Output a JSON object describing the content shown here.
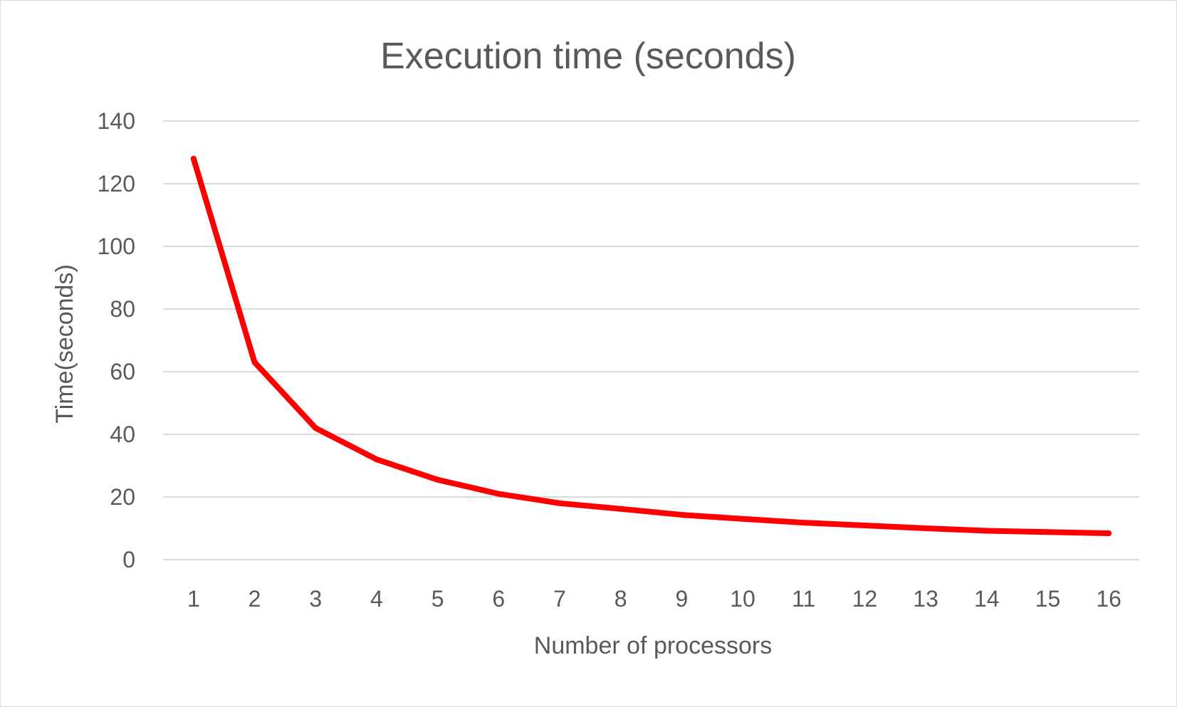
{
  "chart_data": {
    "type": "line",
    "title": "Execution time (seconds)",
    "xlabel": "Number of processors",
    "ylabel": "Time(seconds)",
    "categories": [
      "1",
      "2",
      "3",
      "4",
      "5",
      "6",
      "7",
      "8",
      "9",
      "10",
      "11",
      "12",
      "13",
      "14",
      "15",
      "16"
    ],
    "series": [
      {
        "values": [
          128,
          63,
          42,
          32,
          25.5,
          21,
          18,
          16.2,
          14.3,
          13,
          11.8,
          10.9,
          10,
          9.2,
          8.8,
          8.4
        ]
      }
    ],
    "ylim": [
      0,
      140
    ],
    "yticks": [
      "0",
      "20",
      "40",
      "60",
      "80",
      "100",
      "120",
      "140"
    ],
    "grid": true,
    "legend": "none",
    "colors": {
      "series": "#ff0000",
      "grid": "#d9d9d9",
      "text": "#595959"
    }
  }
}
